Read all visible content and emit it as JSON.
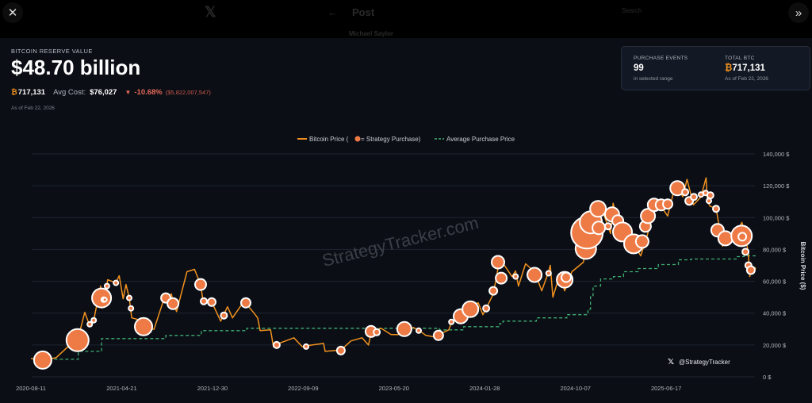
{
  "background": {
    "post_title": "Post",
    "author": "Michael Saylor",
    "search_placeholder": "Search"
  },
  "controls": {
    "close_icon": "x-close-icon",
    "collapse_icon": "double-chevron-right-icon"
  },
  "header": {
    "label": "BITCOIN RESERVE VALUE",
    "value": "$48.70 billion",
    "btc_symbol": "₿",
    "btc_holdings": "717,131",
    "avg_cost_label": "Avg Cost:",
    "avg_cost": "$76,027",
    "change_pct": "-10.68%",
    "change_usd": "($5,822,007,547)",
    "as_of": "As of Feb 22, 2026"
  },
  "stats_card": {
    "purchase_events_label": "PURCHASE EVENTS",
    "purchase_events": "99",
    "purchase_events_sub": "in selected range",
    "total_btc_label": "TOTAL BTC",
    "total_btc_symbol": "₿",
    "total_btc": "717,131",
    "total_btc_sub": "As of Feb 22, 2026"
  },
  "colors": {
    "price": "#f2921f",
    "bubble": "#ee7a45",
    "average": "#3fae73",
    "negative": "#e5695a",
    "btc": "#f2921f"
  },
  "watermark": "StrategyTracker.com",
  "handle": "@StrategyTracker",
  "chart_data": {
    "type": "line",
    "legend": {
      "price": "Bitcoin Price (",
      "price_suffix": " = Strategy Purchase)",
      "average": "Average Purchase Price",
      "placement": "top-center"
    },
    "ylabel": "Bitcoin Price ($)",
    "ylim": [
      0,
      140000
    ],
    "yticks": [
      "0 $",
      "20,000 $",
      "40,000 $",
      "60,000 $",
      "80,000 $",
      "100,000 $",
      "120,000 $",
      "140,000 $"
    ],
    "ytick_values": [
      0,
      20000,
      40000,
      60000,
      80000,
      100000,
      120000,
      140000
    ],
    "xlim": [
      "2020-08-11",
      "2026-02-22"
    ],
    "xticks": [
      "2020-08-11",
      "2021-04-21",
      "2021-12-30",
      "2022-09-09",
      "2023-05-20",
      "2024-01-28",
      "2024-10-07",
      "2025-06-17"
    ],
    "grid": true,
    "price_series": [
      [
        "2020-08-11",
        11600
      ],
      [
        "2020-09-05",
        10200
      ],
      [
        "2020-09-13",
        10400
      ],
      [
        "2020-10-20",
        12000
      ],
      [
        "2020-11-20",
        18500
      ],
      [
        "2020-12-19",
        23000
      ],
      [
        "2021-01-08",
        40500
      ],
      [
        "2021-01-22",
        32000
      ],
      [
        "2021-02-02",
        35500
      ],
      [
        "2021-02-21",
        57000
      ],
      [
        "2021-02-24",
        49500
      ],
      [
        "2021-03-05",
        48500
      ],
      [
        "2021-03-13",
        61000
      ],
      [
        "2021-04-05",
        59000
      ],
      [
        "2021-04-14",
        63500
      ],
      [
        "2021-04-25",
        49000
      ],
      [
        "2021-05-03",
        58000
      ],
      [
        "2021-05-12",
        49500
      ],
      [
        "2021-05-19",
        37000
      ],
      [
        "2021-06-05",
        36000
      ],
      [
        "2021-06-21",
        31500
      ],
      [
        "2021-07-20",
        29800
      ],
      [
        "2021-08-14",
        47000
      ],
      [
        "2021-08-22",
        49500
      ],
      [
        "2021-09-07",
        52000
      ],
      [
        "2021-09-11",
        46000
      ],
      [
        "2021-09-21",
        41000
      ],
      [
        "2021-10-20",
        66000
      ],
      [
        "2021-11-10",
        67500
      ],
      [
        "2021-11-27",
        58000
      ],
      [
        "2021-12-04",
        47500
      ],
      [
        "2021-12-28",
        47000
      ],
      [
        "2022-01-22",
        35000
      ],
      [
        "2022-02-10",
        44000
      ],
      [
        "2022-02-24",
        37000
      ],
      [
        "2022-03-28",
        47500
      ],
      [
        "2022-04-25",
        40000
      ],
      [
        "2022-05-05",
        37000
      ],
      [
        "2022-05-12",
        29000
      ],
      [
        "2022-06-10",
        29500
      ],
      [
        "2022-06-18",
        19000
      ],
      [
        "2022-06-27",
        20500
      ],
      [
        "2022-08-14",
        24500
      ],
      [
        "2022-09-06",
        19000
      ],
      [
        "2022-09-17",
        19500
      ],
      [
        "2022-11-05",
        21000
      ],
      [
        "2022-11-09",
        16000
      ],
      [
        "2022-12-23",
        16800
      ],
      [
        "2023-01-20",
        22500
      ],
      [
        "2023-02-20",
        24500
      ],
      [
        "2023-03-10",
        20000
      ],
      [
        "2023-03-17",
        27500
      ],
      [
        "2023-04-14",
        30500
      ],
      [
        "2023-05-12",
        26500
      ],
      [
        "2023-06-18",
        26500
      ],
      [
        "2023-06-22",
        30000
      ],
      [
        "2023-07-13",
        31000
      ],
      [
        "2023-07-28",
        29300
      ],
      [
        "2023-08-17",
        26000
      ],
      [
        "2023-09-11",
        25000
      ],
      [
        "2023-09-21",
        26500
      ],
      [
        "2023-10-20",
        29500
      ],
      [
        "2023-10-27",
        34000
      ],
      [
        "2023-11-22",
        37500
      ],
      [
        "2023-12-08",
        44000
      ],
      [
        "2024-01-10",
        46500
      ],
      [
        "2024-01-23",
        39000
      ],
      [
        "2024-02-01",
        43000
      ],
      [
        "2024-02-21",
        52000
      ],
      [
        "2024-03-05",
        68000
      ],
      [
        "2024-03-14",
        73000
      ],
      [
        "2024-04-13",
        63000
      ],
      [
        "2024-04-23",
        66500
      ],
      [
        "2024-05-01",
        57000
      ],
      [
        "2024-05-21",
        71000
      ],
      [
        "2024-06-15",
        66000
      ],
      [
        "2024-07-05",
        54000
      ],
      [
        "2024-07-24",
        66000
      ],
      [
        "2024-07-29",
        70000
      ],
      [
        "2024-08-05",
        50000
      ],
      [
        "2024-08-24",
        64000
      ],
      [
        "2024-09-07",
        54000
      ],
      [
        "2024-09-27",
        66000
      ],
      [
        "2024-10-29",
        72000
      ],
      [
        "2024-11-12",
        88000
      ],
      [
        "2024-11-22",
        99000
      ],
      [
        "2024-12-05",
        101000
      ],
      [
        "2024-12-17",
        107000
      ],
      [
        "2025-01-13",
        90000
      ],
      [
        "2025-01-20",
        109000
      ],
      [
        "2025-02-02",
        97500
      ],
      [
        "2025-02-15",
        96000
      ],
      [
        "2025-02-27",
        80000
      ],
      [
        "2025-03-18",
        83500
      ],
      [
        "2025-04-07",
        76000
      ],
      [
        "2025-04-20",
        85000
      ],
      [
        "2025-05-14",
        103500
      ],
      [
        "2025-05-22",
        111000
      ],
      [
        "2025-06-21",
        101000
      ],
      [
        "2025-07-14",
        122000
      ],
      [
        "2025-08-02",
        113000
      ],
      [
        "2025-08-14",
        124000
      ],
      [
        "2025-09-01",
        108000
      ],
      [
        "2025-09-22",
        113000
      ],
      [
        "2025-10-06",
        125000
      ],
      [
        "2025-10-10",
        110000
      ],
      [
        "2025-10-18",
        107000
      ],
      [
        "2025-11-03",
        106000
      ],
      [
        "2025-11-21",
        82000
      ],
      [
        "2025-11-29",
        91000
      ],
      [
        "2025-12-18",
        85000
      ],
      [
        "2026-01-14",
        97000
      ],
      [
        "2026-01-24",
        89000
      ],
      [
        "2026-02-01",
        77000
      ],
      [
        "2026-02-05",
        63000
      ],
      [
        "2026-02-08",
        70000
      ],
      [
        "2026-02-22",
        68000
      ]
    ],
    "average_series": [
      [
        "2020-09-14",
        11000
      ],
      [
        "2020-12-21",
        16000
      ],
      [
        "2021-02-24",
        24000
      ],
      [
        "2021-08-22",
        26000
      ],
      [
        "2021-11-29",
        29000
      ],
      [
        "2022-04-05",
        30500
      ],
      [
        "2023-09-24",
        29500
      ],
      [
        "2023-11-30",
        31500
      ],
      [
        "2024-03-10",
        33500
      ],
      [
        "2024-03-19",
        35000
      ],
      [
        "2024-06-20",
        37000
      ],
      [
        "2024-09-13",
        39000
      ],
      [
        "2024-11-11",
        42500
      ],
      [
        "2024-11-18",
        51000
      ],
      [
        "2024-11-25",
        57000
      ],
      [
        "2024-12-16",
        61500
      ],
      [
        "2025-01-21",
        63000
      ],
      [
        "2025-02-18",
        66000
      ],
      [
        "2025-03-31",
        68000
      ],
      [
        "2025-05-26",
        70500
      ],
      [
        "2025-07-21",
        73500
      ],
      [
        "2025-08-25",
        74000
      ],
      [
        "2025-12-29",
        75500
      ],
      [
        "2026-01-20",
        76000
      ],
      [
        "2026-02-22",
        76000
      ]
    ],
    "purchases": [
      [
        "2020-09-13",
        10500,
        15730
      ],
      [
        "2020-12-19",
        23000,
        25480
      ],
      [
        "2021-01-22",
        33000,
        1170
      ],
      [
        "2021-02-02",
        35500,
        1170
      ],
      [
        "2021-02-24",
        49500,
        18720
      ],
      [
        "2021-03-02",
        48500,
        1170
      ],
      [
        "2021-03-05",
        48500,
        520
      ],
      [
        "2021-03-11",
        57000,
        1170
      ],
      [
        "2021-04-05",
        59000,
        1170
      ],
      [
        "2021-05-12",
        49500,
        1170
      ],
      [
        "2021-05-17",
        43000,
        1170
      ],
      [
        "2021-06-21",
        31500,
        15730
      ],
      [
        "2021-08-22",
        49500,
        4680
      ],
      [
        "2021-09-11",
        46000,
        6370
      ],
      [
        "2021-11-27",
        58000,
        6370
      ],
      [
        "2021-12-06",
        47500,
        2080
      ],
      [
        "2021-12-28",
        47000,
        3250
      ],
      [
        "2022-01-31",
        38500,
        2080
      ],
      [
        "2022-04-02",
        46500,
        4680
      ],
      [
        "2022-06-27",
        20000,
        2080
      ],
      [
        "2022-09-17",
        19000,
        1170
      ],
      [
        "2022-12-23",
        16500,
        3250
      ],
      [
        "2023-03-17",
        28500,
        6370
      ],
      [
        "2023-04-02",
        28000,
        2080
      ],
      [
        "2023-06-18",
        30000,
        10530
      ],
      [
        "2023-07-28",
        29000,
        1170
      ],
      [
        "2023-09-21",
        26000,
        4680
      ],
      [
        "2023-10-27",
        34500,
        1170
      ],
      [
        "2023-11-22",
        38000,
        10530
      ],
      [
        "2023-12-19",
        42500,
        13000
      ],
      [
        "2024-02-01",
        43000,
        2080
      ],
      [
        "2024-02-21",
        54000,
        3250
      ],
      [
        "2024-03-05",
        72000,
        8320
      ],
      [
        "2024-03-14",
        62000,
        6370
      ],
      [
        "2024-04-23",
        63000,
        1170
      ],
      [
        "2024-06-15",
        64000,
        10530
      ],
      [
        "2024-07-24",
        65000,
        1170
      ],
      [
        "2024-09-07",
        61000,
        13000
      ],
      [
        "2024-09-11",
        62500,
        4680
      ],
      [
        "2024-11-05",
        80500,
        21970
      ],
      [
        "2024-11-08",
        90500,
        52000
      ],
      [
        "2024-11-19",
        97000,
        25480
      ],
      [
        "2024-12-09",
        105500,
        13000
      ],
      [
        "2024-12-11",
        93500,
        8320
      ],
      [
        "2025-01-06",
        94500,
        2080
      ],
      [
        "2025-01-17",
        102000,
        10530
      ],
      [
        "2025-02-02",
        98000,
        6370
      ],
      [
        "2025-02-15",
        91000,
        18720
      ],
      [
        "2025-03-18",
        83500,
        18720
      ],
      [
        "2025-04-11",
        85000,
        8320
      ],
      [
        "2025-04-20",
        94500,
        6370
      ],
      [
        "2025-04-27",
        101000,
        10530
      ],
      [
        "2025-05-14",
        108000,
        8320
      ],
      [
        "2025-06-03",
        108000,
        6370
      ],
      [
        "2025-06-21",
        108500,
        4680
      ],
      [
        "2025-07-18",
        118500,
        10530
      ],
      [
        "2025-08-09",
        116000,
        2080
      ],
      [
        "2025-08-20",
        110500,
        3250
      ],
      [
        "2025-09-02",
        113000,
        2080
      ],
      [
        "2025-09-22",
        114500,
        1170
      ],
      [
        "2025-10-05",
        115500,
        1170
      ],
      [
        "2025-10-14",
        110500,
        1170
      ],
      [
        "2025-10-18",
        114000,
        2080
      ],
      [
        "2025-11-03",
        105500,
        2080
      ],
      [
        "2025-11-07",
        92000,
        8320
      ],
      [
        "2025-11-29",
        87000,
        10530
      ],
      [
        "2026-01-13",
        88500,
        21970
      ],
      [
        "2026-01-15",
        88000,
        3250
      ],
      [
        "2026-01-24",
        78500,
        2080
      ],
      [
        "2026-02-01",
        70000,
        2080
      ],
      [
        "2026-02-08",
        67000,
        3250
      ]
    ]
  }
}
